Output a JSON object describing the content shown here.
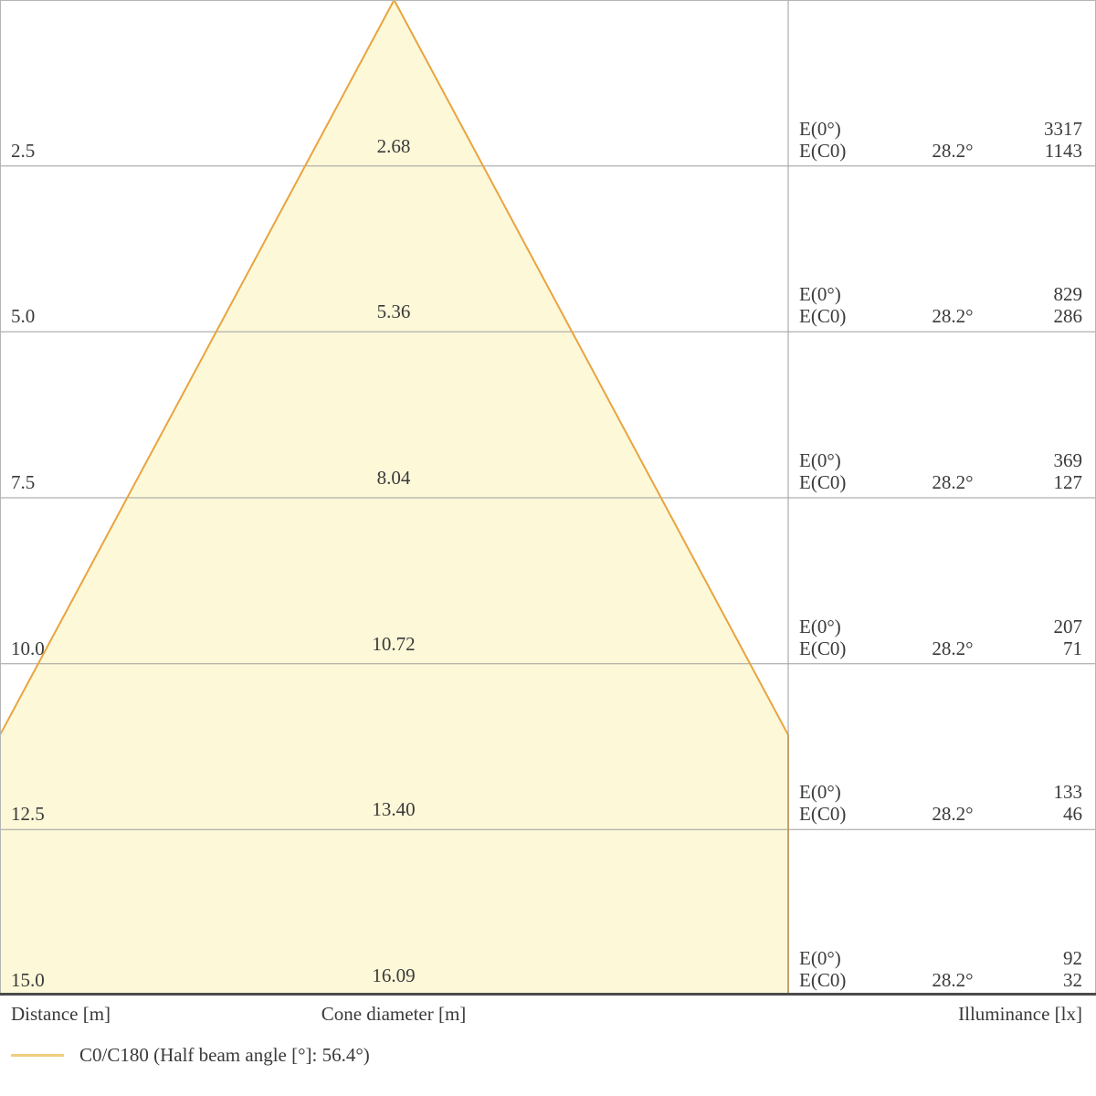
{
  "chart_data": {
    "type": "area",
    "subtype": "photometric-light-cone-diagram",
    "distance_axis": {
      "label": "Distance [m]",
      "unit": "m",
      "values": [
        2.5,
        5.0,
        7.5,
        10.0,
        12.5,
        15.0
      ],
      "max": 15
    },
    "diameter_axis": {
      "label": "Cone diameter [m]",
      "unit": "m"
    },
    "illuminance_axis": {
      "label": "Illuminance [lx]",
      "unit": "lx"
    },
    "half_beam_angle_deg": 28.2,
    "e0_label": "E(0°)",
    "ec0_label": "E(C0)",
    "rows": [
      {
        "distance": "2.5",
        "cone_diameter": "2.68",
        "angle": "28.2°",
        "e0": "3317",
        "ec0": "1143"
      },
      {
        "distance": "5.0",
        "cone_diameter": "5.36",
        "angle": "28.2°",
        "e0": "829",
        "ec0": "286"
      },
      {
        "distance": "7.5",
        "cone_diameter": "8.04",
        "angle": "28.2°",
        "e0": "369",
        "ec0": "127"
      },
      {
        "distance": "10.0",
        "cone_diameter": "10.72",
        "angle": "28.2°",
        "e0": "207",
        "ec0": "71"
      },
      {
        "distance": "12.5",
        "cone_diameter": "13.40",
        "angle": "28.2°",
        "e0": "133",
        "ec0": "46"
      },
      {
        "distance": "15.0",
        "cone_diameter": "16.09",
        "angle": "28.2°",
        "e0": "92",
        "ec0": "32"
      }
    ],
    "legend": {
      "label": "C0/C180 (Half beam angle [°]: 56.4°)"
    },
    "colors": {
      "cone_fill": "#fcf8d8",
      "cone_stroke": "#e9a440",
      "legend_swatch": "#f1cf80",
      "grid_line": "#9e9e9e",
      "panel_border": "#b5b5b5",
      "axis_line": "#4b4b4b",
      "text": "#3a3a3a"
    }
  }
}
